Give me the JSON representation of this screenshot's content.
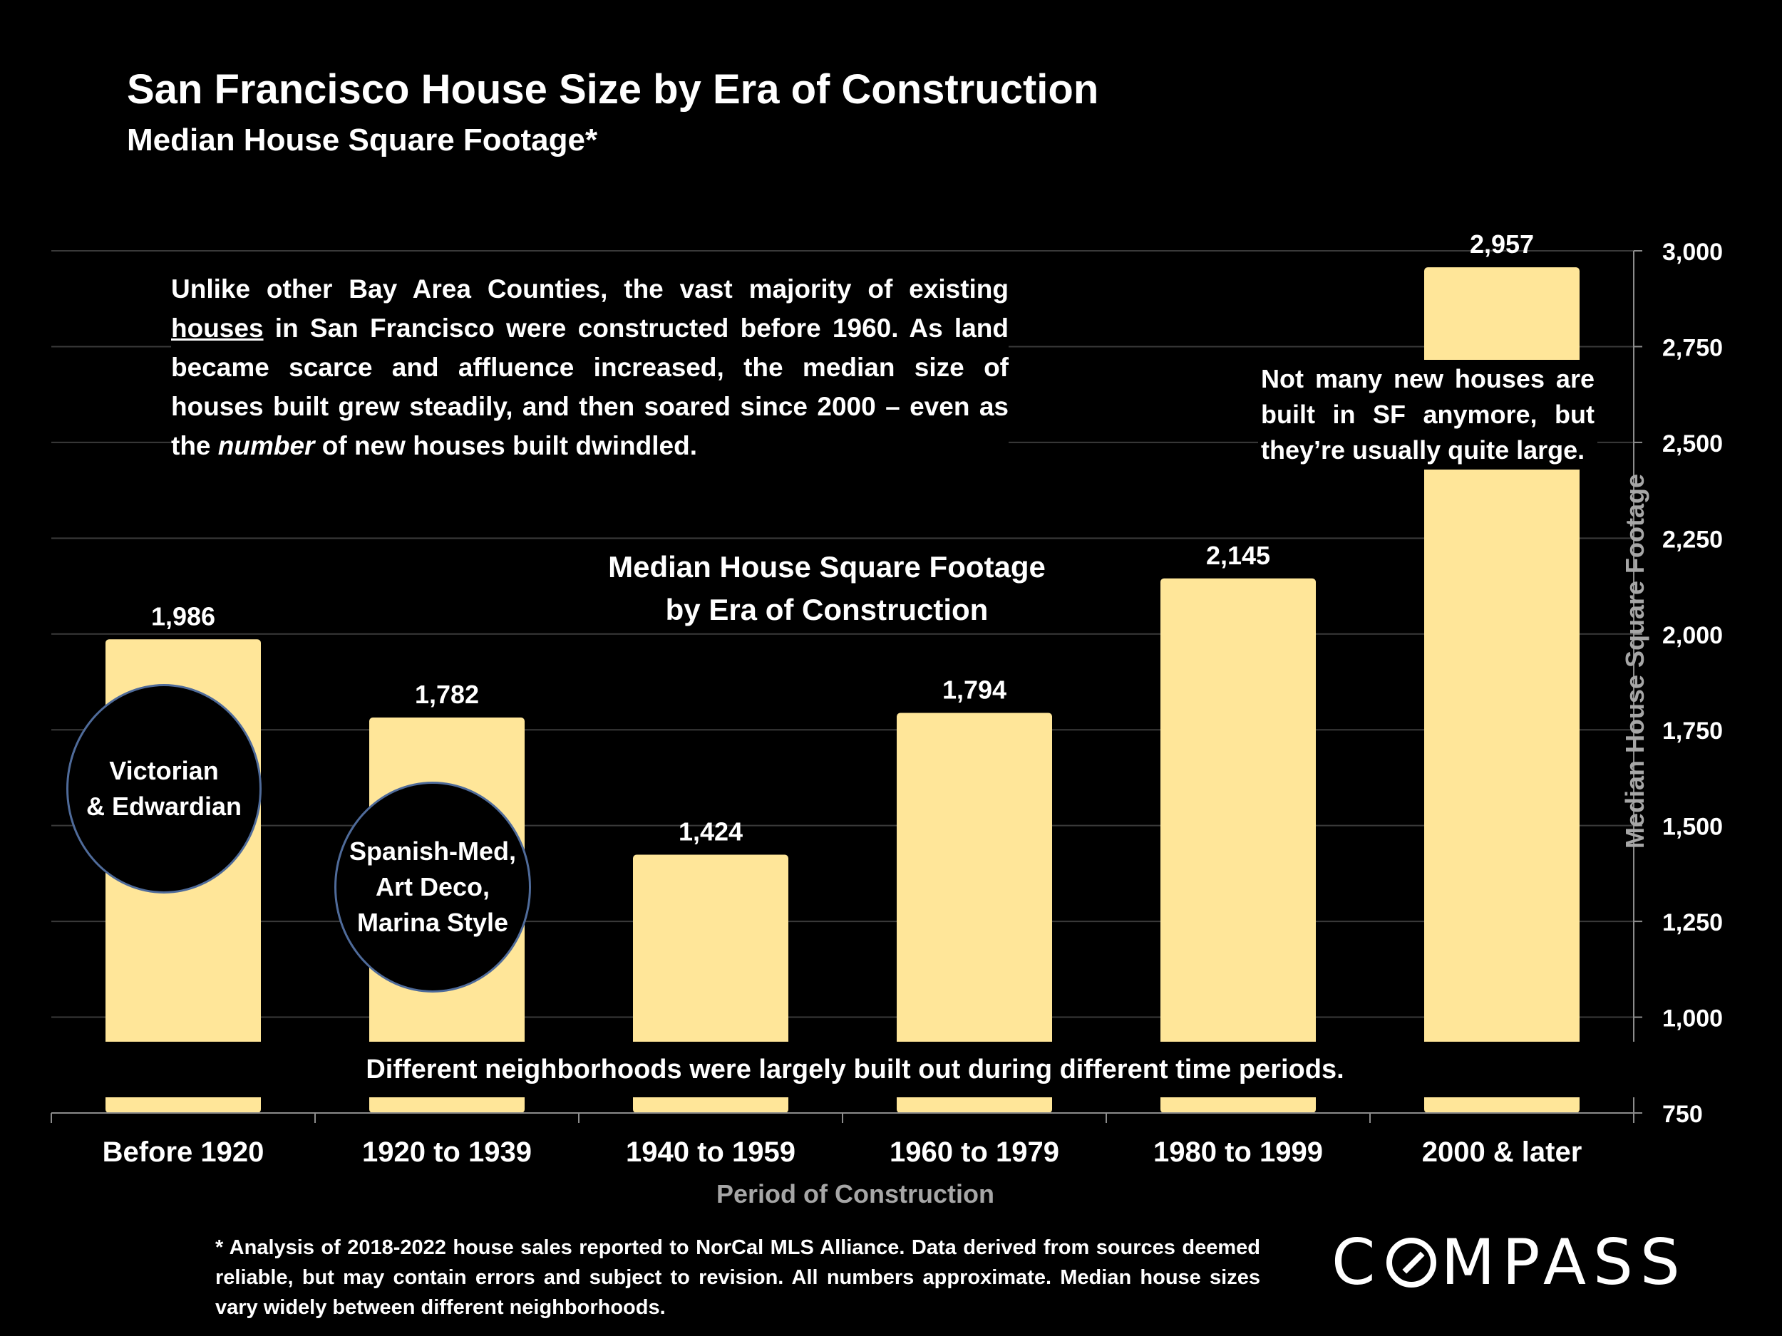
{
  "title": "San Francisco House Size by Era of Construction",
  "subtitle": "Median House Square Footage*",
  "intro": {
    "before_houses": "Unlike other Bay Area Counties, the vast majority of existing ",
    "houses": "houses",
    "after_houses": " in San Francisco were constructed before 1960. As land became scarce and affluence increased, the median size of houses built grew steadily, and then soared since 2000 – even as the ",
    "number": "number",
    "after_number": " of new houses built dwindled."
  },
  "callout": "Not many new houses are built in SF anymore, but they’re usually quite large.",
  "inner_title": {
    "line1": "Median House Square Footage",
    "line2": "by Era of Construction"
  },
  "neighborhood_note": "Different neighborhoods were largely built out during different time periods.",
  "bubbles": {
    "victorian": {
      "line1": "Victorian",
      "line2": "& Edwardian"
    },
    "spanish": {
      "line1": "Spanish-Med,",
      "line2": "Art Deco,",
      "line3": "Marina Style"
    }
  },
  "footnote": "* Analysis of 2018-2022 house sales reported to NorCal MLS Alliance.  Data derived from sources deemed reliable, but may contain errors and subject to revision. All numbers approximate. Median house sizes vary widely between different neighborhoods.",
  "logo": {
    "part1": "C",
    "part2": "MPASS"
  },
  "colors": {
    "bar": "#ffe699",
    "background": "#000000",
    "axis_title": "#a6a6a6",
    "bubble_border": "#4f6b9a"
  },
  "chart_data": {
    "type": "bar",
    "categories": [
      "Before 1920",
      "1920 to 1939",
      "1940 to 1959",
      "1960 to 1979",
      "1980 to 1999",
      "2000 & later"
    ],
    "values": [
      1986,
      1782,
      1424,
      1794,
      2145,
      2957
    ],
    "value_labels": [
      "1,986",
      "1,782",
      "1,424",
      "1,794",
      "2,145",
      "2,957"
    ],
    "xlabel": "Period of Construction",
    "ylabel": "Median House Square Footage",
    "ylim": [
      750,
      3000
    ],
    "yticks": [
      750,
      1000,
      1250,
      1500,
      1750,
      2000,
      2250,
      2500,
      2750,
      3000
    ],
    "ytick_labels": [
      "750",
      "1,000",
      "1,250",
      "1,500",
      "1,750",
      "2,000",
      "2,250",
      "2,500",
      "2,750",
      "3,000"
    ],
    "y_axis_position": "right",
    "grid": true
  }
}
